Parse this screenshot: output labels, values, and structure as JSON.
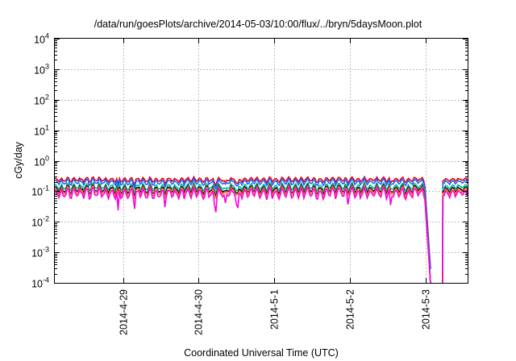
{
  "chart_data": {
    "type": "line",
    "title": "/data/run/goesPlots/archive/2014-05-03/10:00/flux/../bryn/5daysMoon.plot",
    "xlabel": "Coordinated Universal Time (UTC)",
    "ylabel": "cGy/day",
    "x_axis": {
      "type": "time",
      "range_days": [
        -0.9,
        4.55
      ],
      "tick_dates": [
        "2014-4-29",
        "2014-4-30",
        "2014-5-1",
        "2014-5-2",
        "2014-5-3"
      ]
    },
    "y_axis": {
      "scale": "log",
      "ylim": [
        0.0001,
        10000
      ],
      "ticks": [
        {
          "mantissa": "10",
          "exp": "-4"
        },
        {
          "mantissa": "10",
          "exp": "-3"
        },
        {
          "mantissa": "10",
          "exp": "-2"
        },
        {
          "mantissa": "10",
          "exp": "-1"
        },
        {
          "mantissa": "10",
          "exp": "0"
        },
        {
          "mantissa": "10",
          "exp": "1"
        },
        {
          "mantissa": "10",
          "exp": "2"
        },
        {
          "mantissa": "10",
          "exp": "3"
        },
        {
          "mantissa": "10",
          "exp": "4"
        }
      ]
    },
    "grid": true,
    "legend": "none",
    "data_gap_days": [
      4.06,
      4.22
    ],
    "series": [
      {
        "color": "#e4000f",
        "baseline": 0.24,
        "drop_min": 0.0003
      },
      {
        "color": "#1e64ff",
        "baseline": 0.2,
        "drop_min": 0.00028
      },
      {
        "color": "#00b7a0",
        "baseline": 0.14,
        "drop_min": 0.0001
      },
      {
        "color": "#101010",
        "baseline": 0.115,
        "drop_min": 0.0001
      },
      {
        "color": "#ff7a2a",
        "baseline": 0.1,
        "drop_min": 0.0001
      },
      {
        "color": "#ff00dd",
        "baseline": 0.085,
        "drop_min": 0.0001
      }
    ]
  }
}
